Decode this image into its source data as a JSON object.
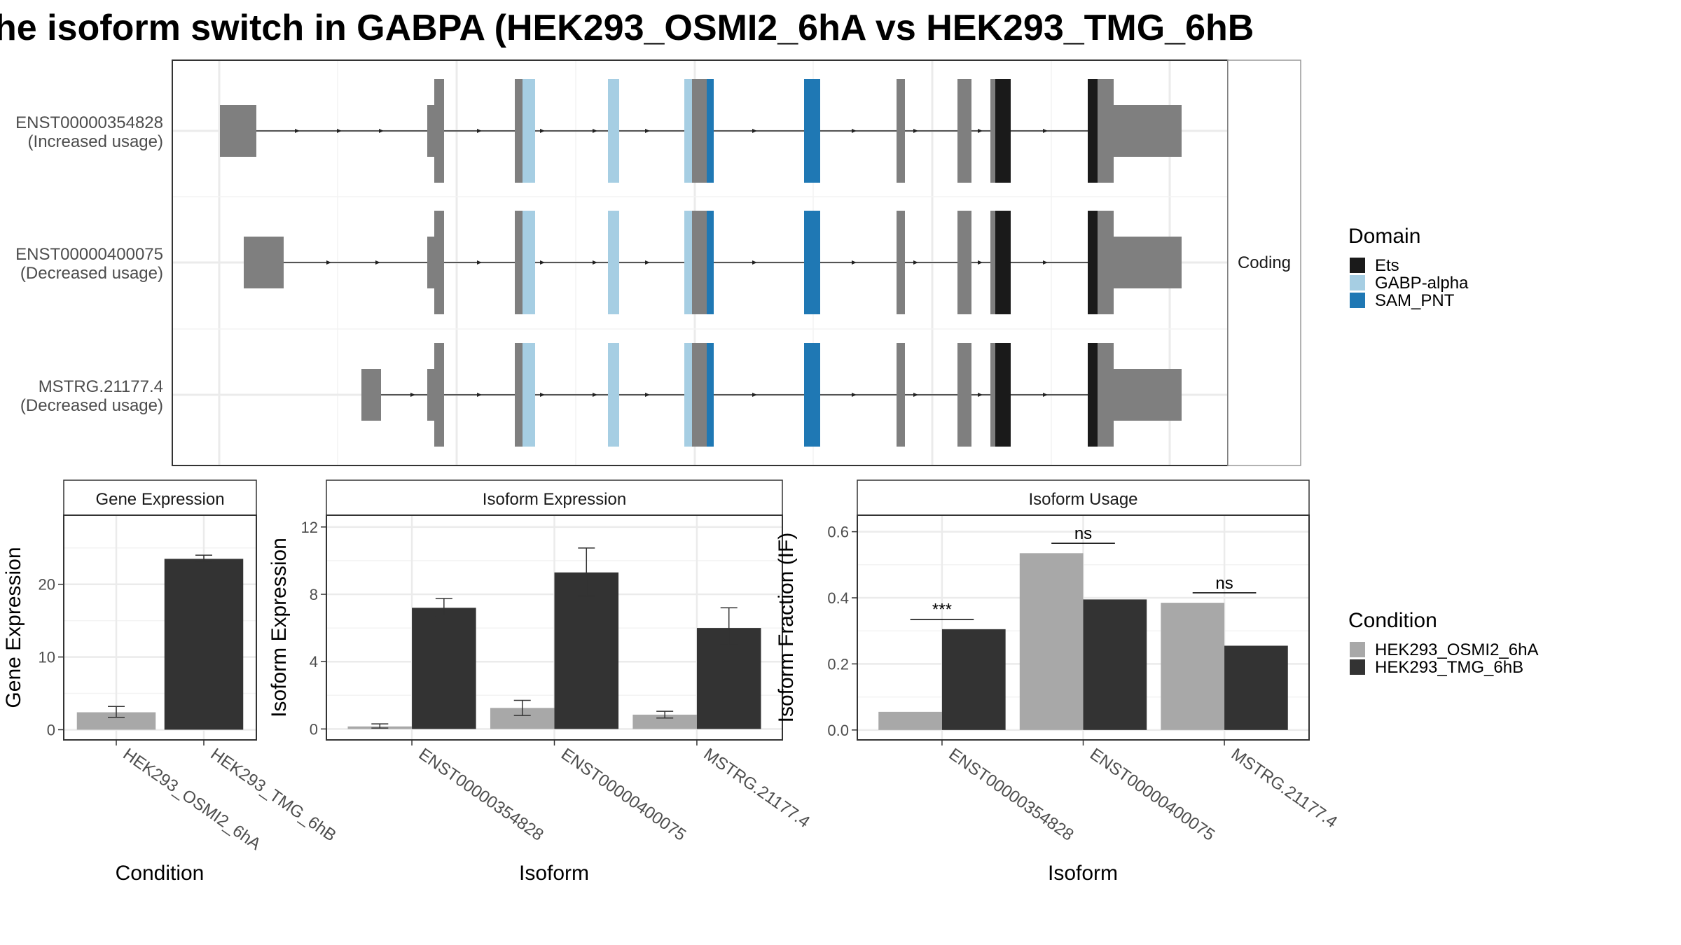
{
  "title": "he isoform switch in GABPA (HEK293_OSMI2_6hA vs HEK293_TMG_6hB",
  "colors": {
    "ets": "#1a1a1a",
    "gabp_alpha": "#a6cee3",
    "sam_pnt": "#1f78b4",
    "exon": "#7f7f7f",
    "cond_a": "#a8a8a8",
    "cond_b": "#333333"
  },
  "structure": {
    "strip_label": "Coding",
    "transcripts": [
      {
        "id": "ENST00000354828",
        "usage": "(Increased usage)"
      },
      {
        "id": "ENST00000400075",
        "usage": "(Decreased usage)"
      },
      {
        "id": "MSTRG.21177.4",
        "usage": "(Decreased usage)"
      }
    ]
  },
  "legend_domain": {
    "title": "Domain",
    "items": [
      {
        "label": "Ets",
        "color": "#1a1a1a"
      },
      {
        "label": "GABP-alpha",
        "color": "#a6cee3"
      },
      {
        "label": "SAM_PNT",
        "color": "#1f78b4"
      }
    ]
  },
  "legend_condition": {
    "title": "Condition",
    "items": [
      {
        "label": "HEK293_OSMI2_6hA",
        "color": "#a8a8a8"
      },
      {
        "label": "HEK293_TMG_6hB",
        "color": "#333333"
      }
    ]
  },
  "chart_data": [
    {
      "type": "bar",
      "panel": "Gene Expression",
      "xlabel": "Condition",
      "ylabel": "Gene Expression",
      "categories": [
        "HEK293_OSMI2_6hA",
        "HEK293_TMG_6hB"
      ],
      "values": [
        2.4,
        23.5
      ],
      "errors": [
        [
          1.7,
          3.2
        ],
        [
          23.0,
          24.0
        ]
      ],
      "colors": [
        "#a8a8a8",
        "#333333"
      ],
      "ylim": [
        -1.4,
        29.5
      ],
      "yticks": [
        0,
        10,
        20
      ]
    },
    {
      "type": "bar",
      "panel": "Isoform Expression",
      "xlabel": "Isoform",
      "ylabel": "Isoform Expression",
      "categories": [
        "ENST00000354828",
        "ENST00000400075",
        "MSTRG.21177.4"
      ],
      "series": [
        {
          "name": "HEK293_OSMI2_6hA",
          "color": "#a8a8a8",
          "values": [
            0.15,
            1.25,
            0.85
          ],
          "errors": [
            [
              0.05,
              0.3
            ],
            [
              0.8,
              1.7
            ],
            [
              0.65,
              1.05
            ]
          ]
        },
        {
          "name": "HEK293_TMG_6hB",
          "color": "#333333",
          "values": [
            7.2,
            9.3,
            6.0
          ],
          "errors": [
            [
              6.7,
              7.75
            ],
            [
              7.9,
              10.75
            ],
            [
              5.0,
              7.2
            ]
          ]
        }
      ],
      "ylim": [
        -0.65,
        12.7
      ],
      "yticks": [
        0,
        4,
        8,
        12
      ]
    },
    {
      "type": "bar",
      "panel": "Isoform Usage",
      "xlabel": "Isoform",
      "ylabel": "Isoform Fraction (IF)",
      "categories": [
        "ENST00000354828",
        "ENST00000400075",
        "MSTRG.21177.4"
      ],
      "series": [
        {
          "name": "HEK293_OSMI2_6hA",
          "color": "#a8a8a8",
          "values": [
            0.055,
            0.535,
            0.385
          ]
        },
        {
          "name": "HEK293_TMG_6hB",
          "color": "#333333",
          "values": [
            0.305,
            0.395,
            0.255
          ]
        }
      ],
      "significance": [
        "***",
        "ns",
        "ns"
      ],
      "significance_y": [
        0.335,
        0.565,
        0.415
      ],
      "ylim": [
        -0.03,
        0.65
      ],
      "yticks": [
        0.0,
        0.2,
        0.4,
        0.6
      ],
      "ytick_labels": [
        "0.0",
        "0.2",
        "0.4",
        "0.6"
      ]
    }
  ]
}
